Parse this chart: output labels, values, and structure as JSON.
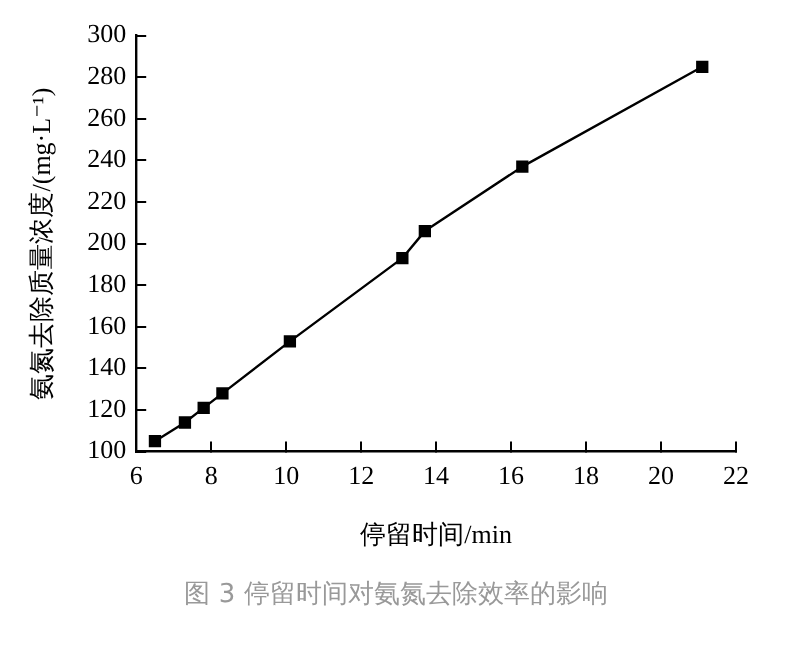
{
  "chart_data": {
    "type": "line",
    "xlabel": "停留时间/min",
    "ylabel": "氨氮去除质量浓度/(mg·L⁻¹)",
    "annotations": [
      "图 3 停留时间对氨氮去除效率的影响"
    ],
    "x": [
      6.5,
      7.3,
      7.8,
      8.3,
      10.1,
      13.1,
      13.7,
      16.3,
      21.1
    ],
    "series": [
      {
        "color": "#000000",
        "values": [
          105,
          114,
          121,
          128,
          153,
          193,
          206,
          237,
          285
        ]
      }
    ],
    "xlim": [
      6,
      22
    ],
    "xticks": [
      6,
      8,
      10,
      12,
      14,
      16,
      18,
      20,
      22
    ],
    "ylim": [
      100,
      300
    ],
    "yticks": [
      100,
      120,
      140,
      160,
      180,
      200,
      220,
      240,
      260,
      280,
      300
    ],
    "grid": false,
    "legend": false,
    "marker": "square",
    "line_style": "solid"
  }
}
